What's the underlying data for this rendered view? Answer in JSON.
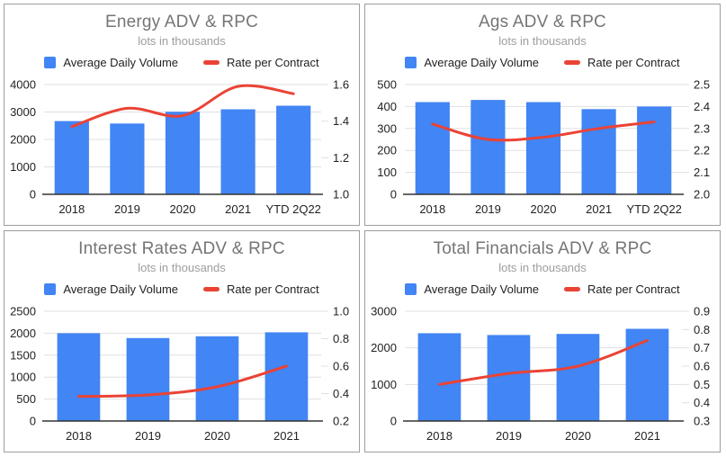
{
  "page": {
    "background": "#ffffff",
    "panel_border": "#9e9e9e"
  },
  "colors": {
    "bar": "#4285f4",
    "line": "#ea4335",
    "title": "#757575",
    "subtitle": "#9e9e9e",
    "axis_text": "#222222",
    "gridline": "#e0e0e0",
    "baseline": "#333333"
  },
  "chart_data": [
    {
      "type": "combo",
      "title": "Energy ADV & RPC",
      "subtitle": "lots in thousands",
      "categories": [
        "2018",
        "2019",
        "2020",
        "2021",
        "YTD 2Q22"
      ],
      "series": [
        {
          "name": "Average Daily Volume",
          "type": "bar",
          "axis": "left",
          "values": [
            2670,
            2580,
            3010,
            3100,
            3230
          ]
        },
        {
          "name": "Rate per Contract",
          "type": "line",
          "axis": "right",
          "values": [
            1.37,
            1.47,
            1.43,
            1.59,
            1.55
          ]
        }
      ],
      "left_axis": {
        "min": 0,
        "max": 4000,
        "ticks": [
          0,
          1000,
          2000,
          3000,
          4000
        ],
        "decimals": 0
      },
      "right_axis": {
        "min": 1.0,
        "max": 1.6,
        "ticks": [
          1.0,
          1.2,
          1.4,
          1.6
        ],
        "decimals": 1
      },
      "legend_position": "top",
      "grid": true
    },
    {
      "type": "combo",
      "title": "Ags ADV & RPC",
      "subtitle": "lots in thousands",
      "categories": [
        "2018",
        "2019",
        "2020",
        "2021",
        "YTD 2Q22"
      ],
      "series": [
        {
          "name": "Average Daily Volume",
          "type": "bar",
          "axis": "left",
          "values": [
            420,
            430,
            420,
            388,
            400
          ]
        },
        {
          "name": "Rate per Contract",
          "type": "line",
          "axis": "right",
          "values": [
            2.32,
            2.25,
            2.26,
            2.3,
            2.33
          ]
        }
      ],
      "left_axis": {
        "min": 0,
        "max": 500,
        "ticks": [
          0,
          100,
          200,
          300,
          400,
          500
        ],
        "decimals": 0
      },
      "right_axis": {
        "min": 2.0,
        "max": 2.5,
        "ticks": [
          2.0,
          2.1,
          2.2,
          2.3,
          2.4,
          2.5
        ],
        "decimals": 1
      },
      "legend_position": "top",
      "grid": true
    },
    {
      "type": "combo",
      "title": "Interest Rates ADV & RPC",
      "subtitle": "lots in thousands",
      "categories": [
        "2018",
        "2019",
        "2020",
        "2021"
      ],
      "series": [
        {
          "name": "Average Daily Volume",
          "type": "bar",
          "axis": "left",
          "values": [
            2000,
            1890,
            1930,
            2020
          ]
        },
        {
          "name": "Rate per Contract",
          "type": "line",
          "axis": "right",
          "values": [
            0.38,
            0.39,
            0.45,
            0.6
          ]
        }
      ],
      "left_axis": {
        "min": 0,
        "max": 2500,
        "ticks": [
          0,
          500,
          1000,
          1500,
          2000,
          2500
        ],
        "decimals": 0
      },
      "right_axis": {
        "min": 0.2,
        "max": 1.0,
        "ticks": [
          0.2,
          0.4,
          0.6,
          0.8,
          1.0
        ],
        "decimals": 1
      },
      "legend_position": "top",
      "grid": true
    },
    {
      "type": "combo",
      "title": "Total Financials ADV & RPC",
      "subtitle": "lots in thousands",
      "categories": [
        "2018",
        "2019",
        "2020",
        "2021"
      ],
      "series": [
        {
          "name": "Average Daily Volume",
          "type": "bar",
          "axis": "left",
          "values": [
            2400,
            2350,
            2380,
            2520
          ]
        },
        {
          "name": "Rate per Contract",
          "type": "line",
          "axis": "right",
          "values": [
            0.5,
            0.56,
            0.6,
            0.74
          ]
        }
      ],
      "left_axis": {
        "min": 0,
        "max": 3000,
        "ticks": [
          0,
          1000,
          2000,
          3000
        ],
        "decimals": 0
      },
      "right_axis": {
        "min": 0.3,
        "max": 0.9,
        "ticks": [
          0.3,
          0.4,
          0.5,
          0.6,
          0.7,
          0.8,
          0.9
        ],
        "decimals": 1
      },
      "legend_position": "top",
      "grid": true
    }
  ]
}
